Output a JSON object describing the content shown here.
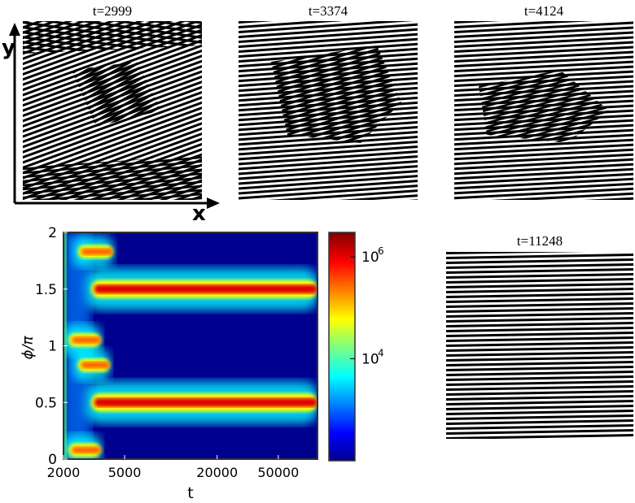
{
  "panels": [
    {
      "title": "t=2999"
    },
    {
      "title": "t=3374"
    },
    {
      "title": "t=4124"
    },
    {
      "title": "t=11248"
    }
  ],
  "axes_arrows": {
    "x_label": "x",
    "y_label": "y"
  },
  "colors": {
    "jet_low": "#00008f",
    "jet_mid": "#ffff00",
    "jet_high": "#800000"
  },
  "chart_data": {
    "type": "heatmap",
    "title": "",
    "xlabel": "t",
    "ylabel": "ϕ/π",
    "xscale": "log",
    "xlim": [
      2000,
      90000
    ],
    "ylim": [
      0,
      2
    ],
    "xticks": [
      {
        "value": 2000,
        "label": "2000"
      },
      {
        "value": 5000,
        "label": "5000"
      },
      {
        "value": 20000,
        "label": "20000"
      },
      {
        "value": 50000,
        "label": "50000"
      }
    ],
    "yticks": [
      {
        "value": 0,
        "label": "0"
      },
      {
        "value": 0.5,
        "label": "0.5"
      },
      {
        "value": 1,
        "label": "1"
      },
      {
        "value": 1.5,
        "label": "1.5"
      },
      {
        "value": 2,
        "label": "2"
      }
    ],
    "colorbar": {
      "scale": "log",
      "range": [
        100,
        3000000
      ],
      "ticks": [
        {
          "value": 10000,
          "label": "10",
          "exp": "4"
        },
        {
          "value": 1000000,
          "label": "10",
          "exp": "6"
        }
      ]
    },
    "features": [
      {
        "phi": 0.5,
        "t_start": 2800,
        "t_end": 90000,
        "level": 1.0
      },
      {
        "phi": 1.5,
        "t_start": 2800,
        "t_end": 90000,
        "level": 0.95
      },
      {
        "phi": 1.83,
        "t_start": 2300,
        "t_end": 4200,
        "level": 0.7
      },
      {
        "phi": 0.83,
        "t_start": 2300,
        "t_end": 4000,
        "level": 0.6
      },
      {
        "phi": 0.08,
        "t_start": 2000,
        "t_end": 3500,
        "level": 0.6
      },
      {
        "phi": 1.05,
        "t_start": 2000,
        "t_end": 3500,
        "level": 0.5
      }
    ]
  }
}
